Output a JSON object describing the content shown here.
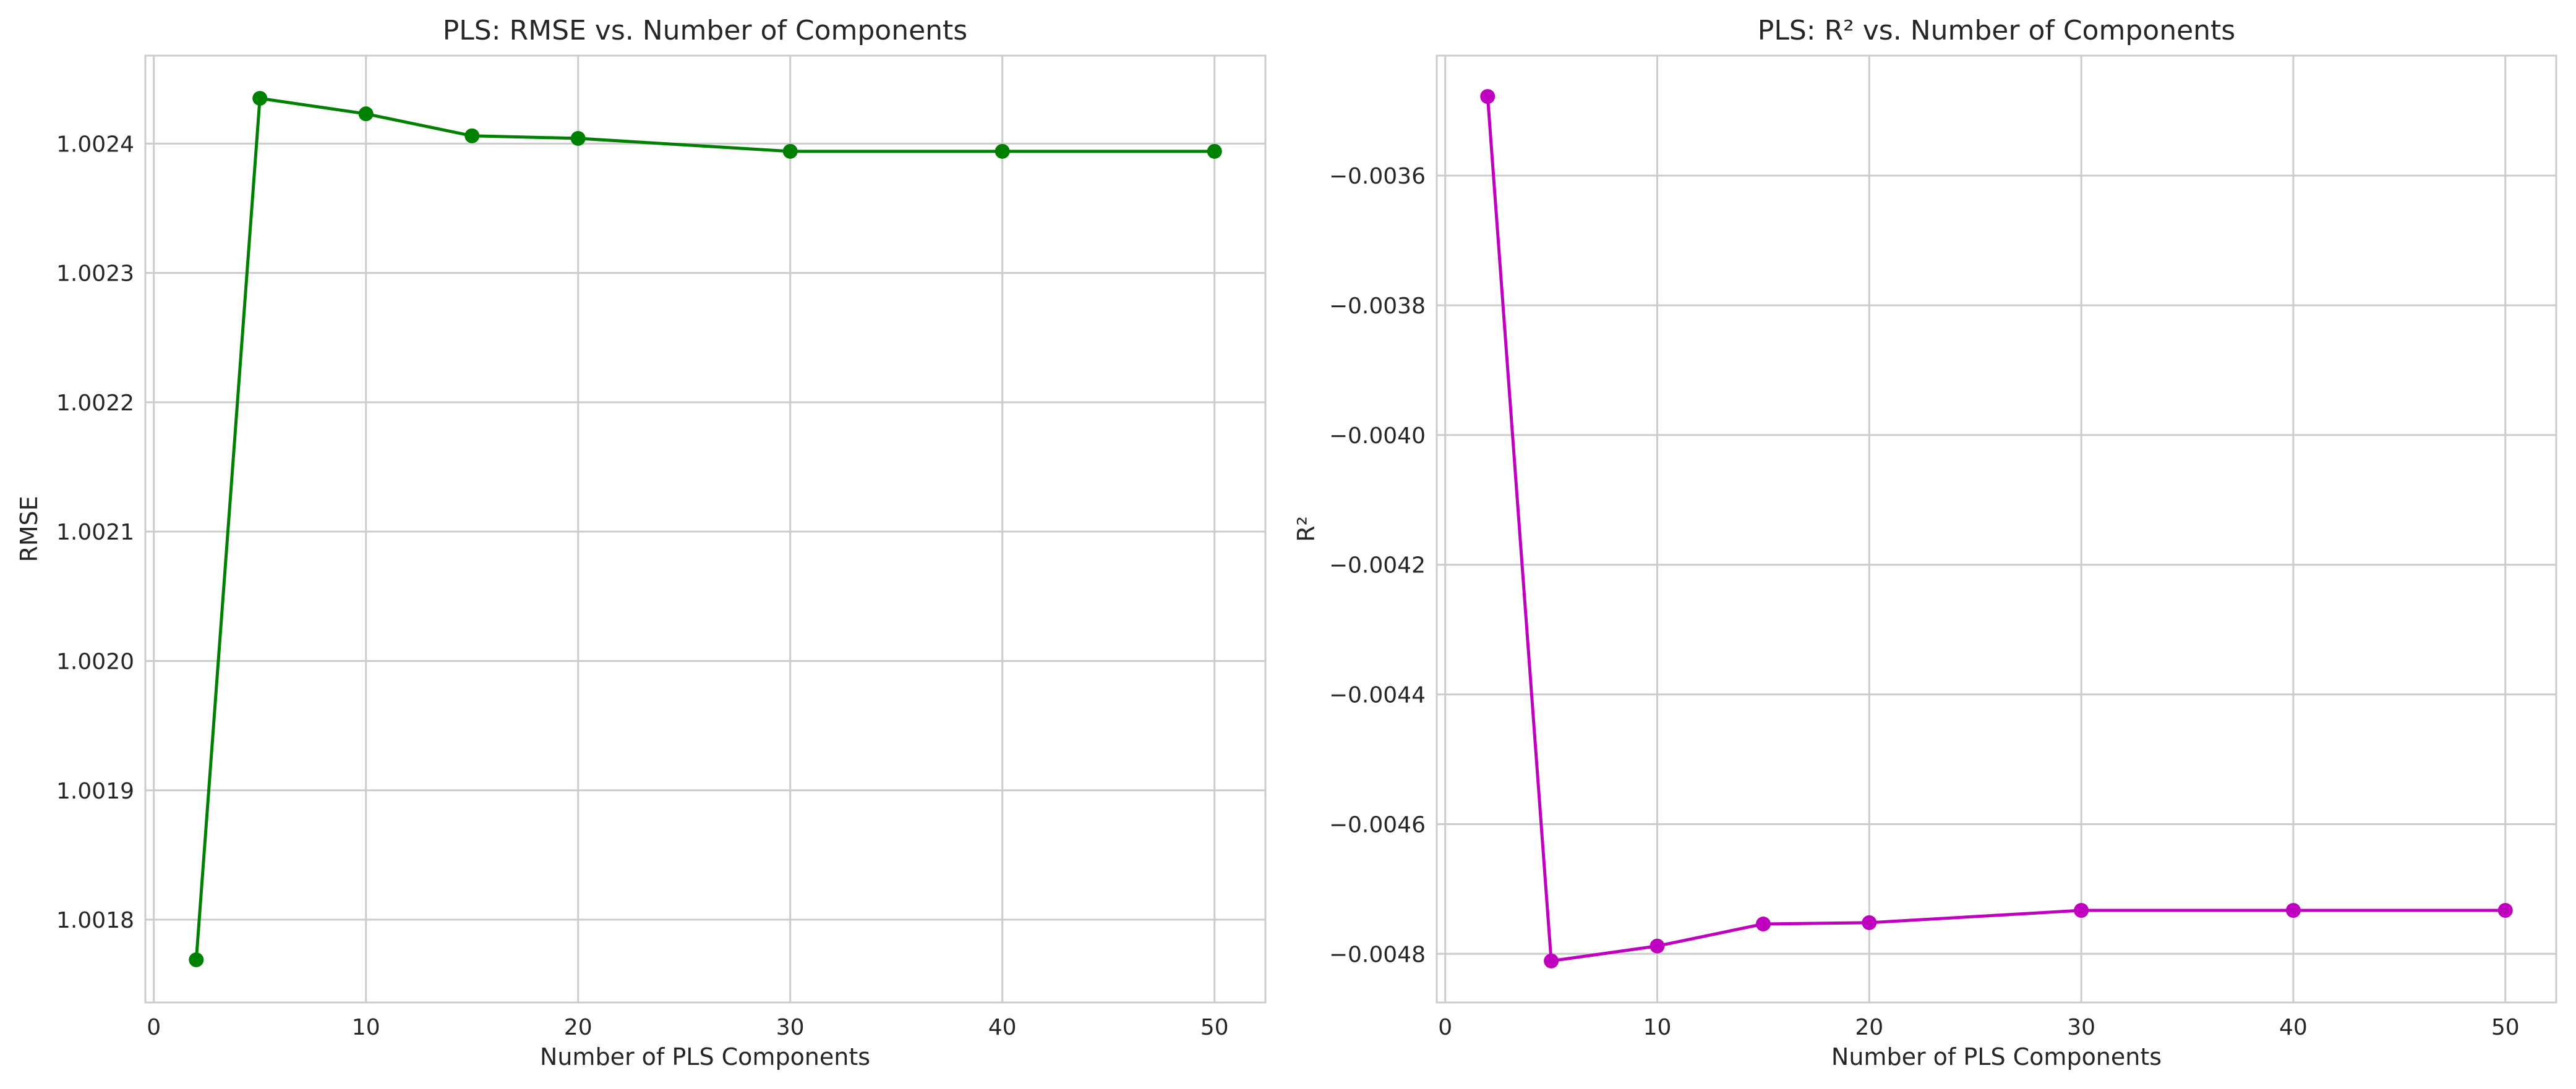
{
  "chart_data": [
    {
      "type": "line",
      "title": "PLS: RMSE vs. Number of Components",
      "xlabel": "Number of PLS Components",
      "ylabel": "RMSE",
      "x": [
        2,
        5,
        10,
        15,
        20,
        30,
        40,
        50
      ],
      "series": [
        {
          "values": [
            1.001769,
            1.002435,
            1.002423,
            1.002406,
            1.002404,
            1.002394,
            1.002394,
            1.002394
          ],
          "color": "#008000",
          "marker": "circle"
        }
      ],
      "xlim": [
        -0.4,
        52.4
      ],
      "ylim": [
        1.001736,
        1.002468
      ],
      "xticks": [
        0,
        10,
        20,
        30,
        40,
        50
      ],
      "xtick_labels": [
        "0",
        "10",
        "20",
        "30",
        "40",
        "50"
      ],
      "yticks": [
        1.0018,
        1.0019,
        1.002,
        1.0021,
        1.0022,
        1.0023,
        1.0024
      ],
      "ytick_labels": [
        "1.0018",
        "1.0019",
        "1.0020",
        "1.0021",
        "1.0022",
        "1.0023",
        "1.0024"
      ],
      "grid": true
    },
    {
      "type": "line",
      "title": "PLS: R² vs. Number of Components",
      "xlabel": "Number of PLS Components",
      "ylabel": "R²",
      "x": [
        2,
        5,
        10,
        15,
        20,
        30,
        40,
        50
      ],
      "series": [
        {
          "values": [
            -0.003478,
            -0.004811,
            -0.004788,
            -0.004754,
            -0.004752,
            -0.004733,
            -0.004733,
            -0.004733
          ],
          "color": "#bf00bf",
          "marker": "circle"
        }
      ],
      "xlim": [
        -0.4,
        52.4
      ],
      "ylim": [
        -0.004875,
        -0.003415
      ],
      "xticks": [
        0,
        10,
        20,
        30,
        40,
        50
      ],
      "xtick_labels": [
        "0",
        "10",
        "20",
        "30",
        "40",
        "50"
      ],
      "yticks": [
        -0.0048,
        -0.0046,
        -0.0044,
        -0.0042,
        -0.004,
        -0.0038,
        -0.0036
      ],
      "ytick_labels": [
        "−0.0048",
        "−0.0046",
        "−0.0044",
        "−0.0042",
        "−0.0040",
        "−0.0038",
        "−0.0036"
      ],
      "grid": true
    }
  ]
}
